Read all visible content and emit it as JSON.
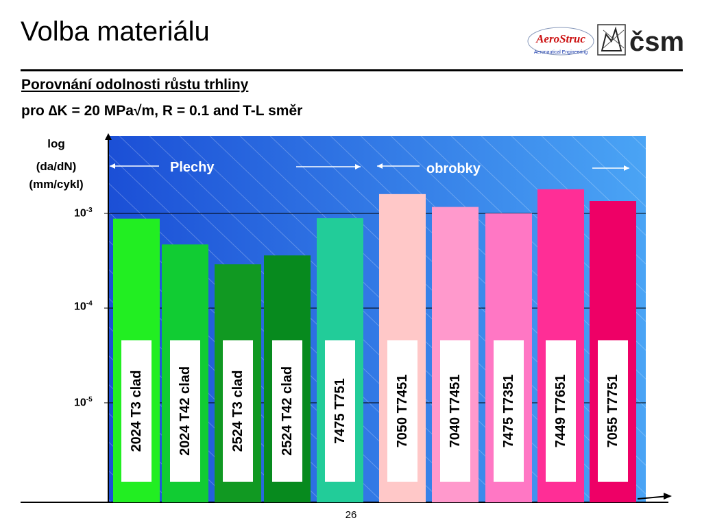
{
  "slide": {
    "title": "Volba materiálu",
    "subtitle": "Porovnání odolnosti růstu trhliny",
    "condition": "pro ∆K = 20 MPa√m,  R = 0.1 and T-L směr",
    "page_number": "26",
    "logos": {
      "aerostruc": "AeroStruc",
      "aerostruc_tagline": "Aeronautical Engineering",
      "csm": "čsm"
    }
  },
  "chart_data": {
    "type": "bar",
    "ylabel": [
      "log",
      "(da/dN)",
      "(mm/cykl)"
    ],
    "yscale": "log",
    "ylim": [
      1.13e-06,
      0.0013
    ],
    "yticks": [
      {
        "base": "10",
        "exp": "-3",
        "value": 0.001
      },
      {
        "base": "10",
        "exp": "-4",
        "value": 0.0001
      },
      {
        "base": "10",
        "exp": "-5",
        "value": 1e-05
      }
    ],
    "grid": true,
    "groups": [
      {
        "label": "Plechy",
        "categories": [
          "2024 T3 clad",
          "2024 T42 clad",
          "2524 T3 clad",
          "2524 T42 clad",
          "7475 T751"
        ]
      },
      {
        "label": "obrobky",
        "categories": [
          "7050 T7451",
          "7040 T7451",
          "7475 T7351",
          "7449 T7651",
          "7055 T7751"
        ]
      }
    ],
    "categories": [
      "2024 T3 clad",
      "2024 T42 clad",
      "2524 T3 clad",
      "2524 T42 clad",
      "7475 T751",
      "7050 T7451",
      "7040 T7451",
      "7475 T7351",
      "7449 T7651",
      "7055 T7751"
    ],
    "values": [
      0.00088,
      0.00047,
      0.00029,
      0.00036,
      0.00089,
      0.0016,
      0.00117,
      0.001,
      0.0018,
      0.00135
    ],
    "colors": [
      "#22ee22",
      "#11cc33",
      "#119922",
      "#078a1e",
      "#22cc99",
      "#ffc8c8",
      "#ff99cc",
      "#ff77c4",
      "#ff2e96",
      "#ee0066"
    ],
    "plot_background": [
      "#1b4fd6",
      "#4aa4f5"
    ]
  }
}
